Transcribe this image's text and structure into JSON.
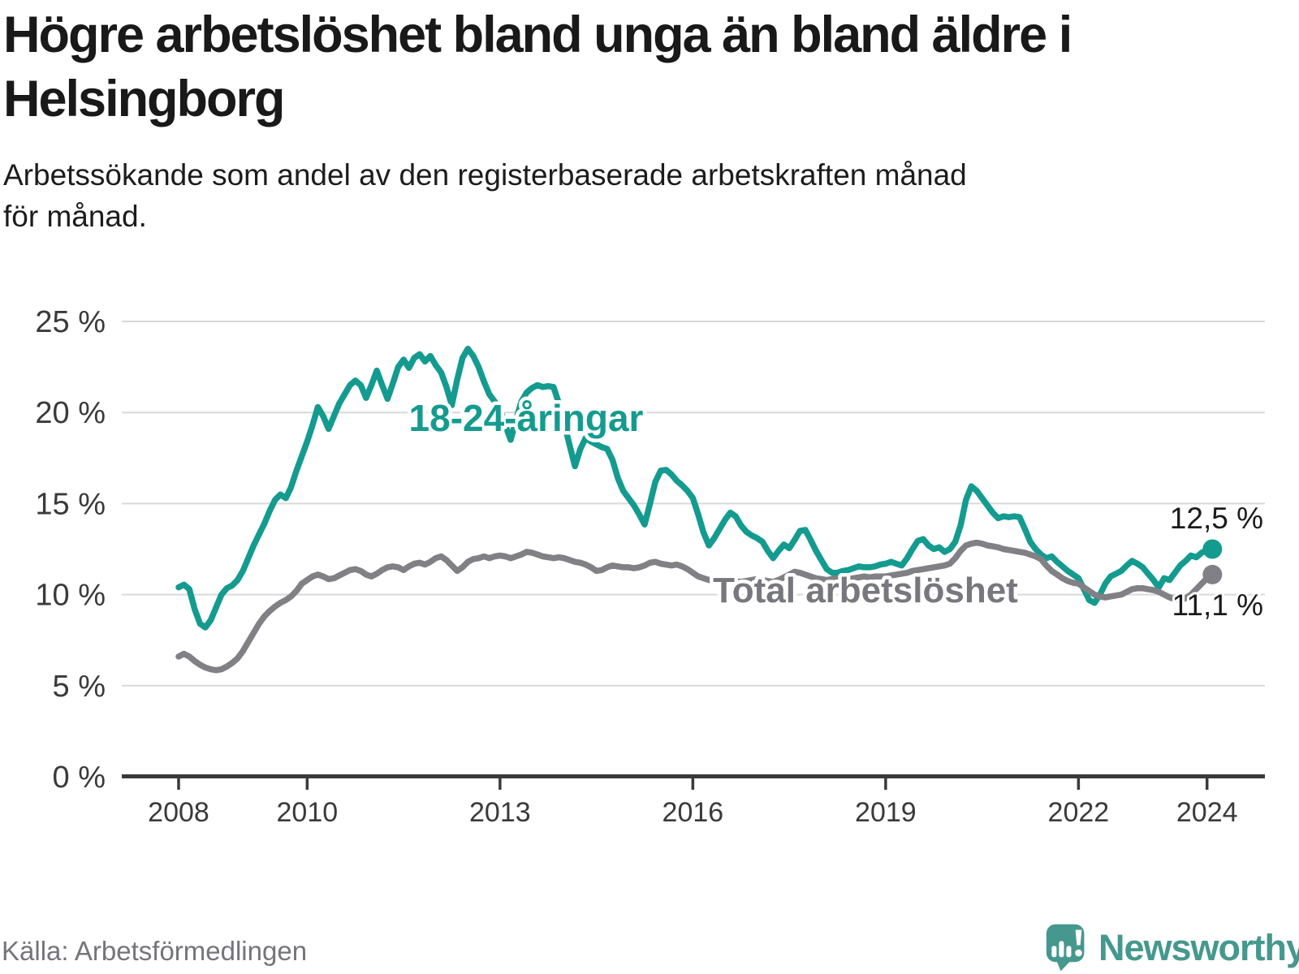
{
  "header": {
    "title": "Högre arbetslöshet bland unga än bland äldre i\nHelsingborg",
    "subtitle": "Arbetssökande som andel av den registerbaserade arbetskraften månad\nför månad."
  },
  "footer": {
    "source": "Källa: Arbetsförmedlingen",
    "brand": "Newsworthy",
    "brand_icon": "newsworthy-speech-bubble-bar-chart-icon"
  },
  "colors": {
    "youth_line": "#149b8f",
    "total_line": "#808085",
    "total_label_text": "#77777e",
    "grid": "#d9d9d9",
    "axis": "#3a3a3a",
    "tick_text": "#3a3a3a",
    "value_text": "#1b1b1b",
    "brand": "#45988e"
  },
  "chart_data": {
    "type": "line",
    "title": "Högre arbetslöshet bland unga än bland äldre i Helsingborg",
    "subtitle": "Arbetssökande som andel av den registerbaserade arbetskraften månad för månad.",
    "xlabel": "",
    "ylabel": "",
    "x_unit": "months",
    "x_start": "2008-01",
    "x_end": "2024-02",
    "xlim": [
      2008.0,
      2024.1
    ],
    "ylim": [
      0,
      26.5
    ],
    "grid": true,
    "legend_position": "inline-labels",
    "y_ticks": [
      0,
      5,
      10,
      15,
      20,
      25
    ],
    "y_tick_labels": [
      "0 %",
      "5 %",
      "10 %",
      "15 %",
      "20 %",
      "25 %"
    ],
    "x_ticks": [
      2008,
      2010,
      2013,
      2016,
      2019,
      2022,
      2024
    ],
    "x_tick_labels": [
      "2008",
      "2010",
      "2013",
      "2016",
      "2019",
      "2022",
      "2024"
    ],
    "series": [
      {
        "name": "18-24-åringar",
        "color": "#149b8f",
        "end_label": "12,5 %",
        "end_value": 12.5,
        "values": [
          10.4,
          10.55,
          10.3,
          9.2,
          8.4,
          8.2,
          8.6,
          9.3,
          10.0,
          10.35,
          10.5,
          10.8,
          11.3,
          12.0,
          12.7,
          13.3,
          13.9,
          14.6,
          15.2,
          15.5,
          15.3,
          15.9,
          16.8,
          17.6,
          18.4,
          19.3,
          20.3,
          19.8,
          19.1,
          19.8,
          20.5,
          21.0,
          21.5,
          21.75,
          21.5,
          20.8,
          21.5,
          22.3,
          21.5,
          20.75,
          21.6,
          22.5,
          22.9,
          22.45,
          23.0,
          23.2,
          22.8,
          23.1,
          22.6,
          22.2,
          21.4,
          20.4,
          21.8,
          23.0,
          23.5,
          23.1,
          22.5,
          21.7,
          21.0,
          20.6,
          20.2,
          19.3,
          18.5,
          19.6,
          20.6,
          21.1,
          21.35,
          21.5,
          21.4,
          21.45,
          21.4,
          20.5,
          19.4,
          18.2,
          17.05,
          18.0,
          18.6,
          18.4,
          18.25,
          18.1,
          18.0,
          17.4,
          16.4,
          15.7,
          15.3,
          14.9,
          14.4,
          13.85,
          15.0,
          16.2,
          16.8,
          16.85,
          16.6,
          16.25,
          16.0,
          15.7,
          15.3,
          14.4,
          13.4,
          12.7,
          13.1,
          13.6,
          14.1,
          14.5,
          14.3,
          13.8,
          13.45,
          13.25,
          13.1,
          12.9,
          12.4,
          12.0,
          12.4,
          12.75,
          12.55,
          13.0,
          13.5,
          13.55,
          13.0,
          12.4,
          11.9,
          11.4,
          11.2,
          11.2,
          11.3,
          11.35,
          11.45,
          11.55,
          11.5,
          11.5,
          11.55,
          11.65,
          11.7,
          11.8,
          11.7,
          11.6,
          12.0,
          12.5,
          12.95,
          13.05,
          12.7,
          12.5,
          12.6,
          12.35,
          12.5,
          12.9,
          13.8,
          15.2,
          15.95,
          15.7,
          15.3,
          14.9,
          14.5,
          14.2,
          14.3,
          14.25,
          14.3,
          14.25,
          13.6,
          12.9,
          12.5,
          12.2,
          12.0,
          12.1,
          11.8,
          11.55,
          11.3,
          11.1,
          10.9,
          10.3,
          9.7,
          9.55,
          10.0,
          10.6,
          11.0,
          11.15,
          11.3,
          11.6,
          11.85,
          11.7,
          11.5,
          11.15,
          10.8,
          10.4,
          10.9,
          10.8,
          11.2,
          11.6,
          11.85,
          12.15,
          12.05,
          12.3,
          12.45,
          12.5
        ]
      },
      {
        "name": "Total arbetslöshet",
        "color": "#808085",
        "end_label": "11,1 %",
        "end_value": 11.1,
        "values": [
          6.6,
          6.75,
          6.6,
          6.35,
          6.15,
          6.0,
          5.9,
          5.85,
          5.9,
          6.05,
          6.25,
          6.5,
          6.9,
          7.4,
          7.9,
          8.4,
          8.8,
          9.1,
          9.35,
          9.55,
          9.7,
          9.9,
          10.2,
          10.6,
          10.8,
          11.0,
          11.1,
          11.0,
          10.85,
          10.9,
          11.05,
          11.2,
          11.35,
          11.4,
          11.3,
          11.1,
          11.0,
          11.15,
          11.35,
          11.5,
          11.55,
          11.5,
          11.35,
          11.55,
          11.7,
          11.75,
          11.65,
          11.8,
          12.0,
          12.1,
          11.9,
          11.6,
          11.3,
          11.5,
          11.8,
          11.95,
          12.0,
          12.1,
          12.0,
          12.1,
          12.15,
          12.1,
          12.0,
          12.1,
          12.2,
          12.35,
          12.3,
          12.2,
          12.1,
          12.05,
          12.0,
          12.05,
          12.0,
          11.9,
          11.8,
          11.75,
          11.65,
          11.5,
          11.3,
          11.35,
          11.5,
          11.6,
          11.55,
          11.5,
          11.5,
          11.45,
          11.5,
          11.6,
          11.75,
          11.8,
          11.7,
          11.65,
          11.6,
          11.65,
          11.55,
          11.4,
          11.2,
          11.0,
          10.9,
          10.8,
          10.75,
          10.7,
          10.75,
          10.8,
          10.75,
          10.7,
          10.75,
          10.8,
          10.85,
          10.8,
          10.75,
          10.7,
          10.8,
          10.95,
          11.1,
          11.25,
          11.2,
          11.1,
          11.0,
          10.9,
          10.85,
          10.8,
          10.85,
          10.9,
          10.9,
          10.85,
          10.9,
          10.95,
          11.0,
          10.95,
          11.0,
          11.0,
          11.0,
          11.05,
          11.1,
          11.15,
          11.2,
          11.3,
          11.35,
          11.4,
          11.45,
          11.5,
          11.55,
          11.6,
          11.7,
          12.0,
          12.4,
          12.7,
          12.8,
          12.85,
          12.8,
          12.7,
          12.65,
          12.6,
          12.5,
          12.45,
          12.4,
          12.35,
          12.3,
          12.2,
          12.1,
          11.95,
          11.6,
          11.3,
          11.1,
          10.9,
          10.75,
          10.65,
          10.6,
          10.4,
          10.2,
          10.0,
          9.9,
          9.85,
          9.9,
          9.95,
          10.0,
          10.15,
          10.3,
          10.35,
          10.35,
          10.3,
          10.25,
          10.15,
          10.0,
          9.85,
          9.75,
          9.7,
          9.8,
          10.0,
          10.3,
          10.6,
          10.9,
          11.1
        ]
      }
    ]
  }
}
